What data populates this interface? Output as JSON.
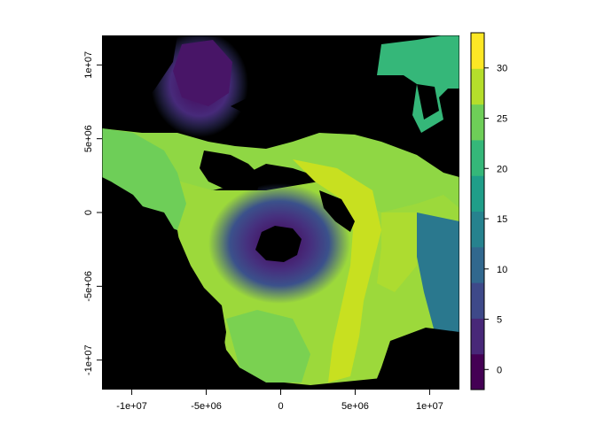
{
  "chart_data": {
    "type": "heatmap",
    "title": "",
    "xlabel": "",
    "ylabel": "",
    "xlim": [
      -12000000,
      12000000
    ],
    "ylim": [
      -12000000,
      12000000
    ],
    "x_ticks": [
      {
        "value": -10000000,
        "label": "-1e+07"
      },
      {
        "value": -5000000,
        "label": "-5e+06"
      },
      {
        "value": 0,
        "label": "0"
      },
      {
        "value": 5000000,
        "label": "5e+06"
      },
      {
        "value": 10000000,
        "label": "1e+07"
      }
    ],
    "y_ticks": [
      {
        "value": -10000000,
        "label": "-1e+07"
      },
      {
        "value": -5000000,
        "label": "-5e+06"
      },
      {
        "value": 0,
        "label": "0"
      },
      {
        "value": 5000000,
        "label": "5e+06"
      },
      {
        "value": 10000000,
        "label": "1e+07"
      }
    ],
    "colorbar": {
      "min": -2,
      "max": 33.5,
      "ticks": [
        {
          "value": 0,
          "label": "0"
        },
        {
          "value": 5,
          "label": "5"
        },
        {
          "value": 10,
          "label": "10"
        },
        {
          "value": 15,
          "label": "15"
        },
        {
          "value": 20,
          "label": "20"
        },
        {
          "value": 25,
          "label": "25"
        },
        {
          "value": 30,
          "label": "30"
        }
      ],
      "palette": [
        "#440154",
        "#482878",
        "#3e4989",
        "#31688e",
        "#26828e",
        "#1f9e89",
        "#35b779",
        "#6ece58",
        "#b5de2b",
        "#fde725"
      ]
    },
    "no_data_color": "#000000",
    "grid": false,
    "legend": "right"
  }
}
